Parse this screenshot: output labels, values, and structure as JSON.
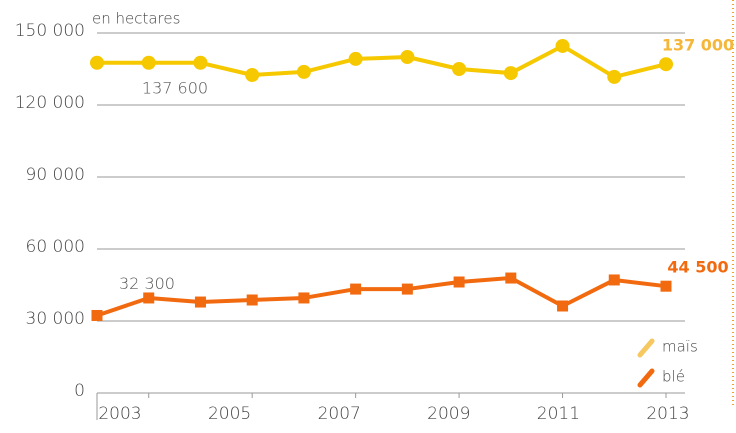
{
  "chart_data": {
    "type": "line",
    "y_label": "en hectares",
    "x": [
      2002,
      2003,
      2004,
      2005,
      2006,
      2007,
      2008,
      2009,
      2010,
      2011,
      2012,
      2013
    ],
    "xlim": [
      2002,
      2013
    ],
    "xticks": [
      2003,
      2005,
      2007,
      2009,
      2011,
      2013
    ],
    "ylim": [
      0,
      150000
    ],
    "yticks": [
      0,
      {
        "value": 30000,
        "label": "30 000"
      },
      {
        "value": 60000,
        "label": "60 000"
      },
      {
        "value": 90000,
        "label": "90 000"
      },
      {
        "value": 120000,
        "label": "120 000"
      },
      {
        "value": 150000,
        "label": "150 000"
      }
    ],
    "grid": true,
    "legend": "lower right",
    "series": [
      {
        "name": "maïs",
        "color": "#f5c800",
        "marker": "circle",
        "values": [
          137600,
          137600,
          137600,
          132500,
          133800,
          139200,
          140000,
          135000,
          133300,
          144600,
          131700,
          137000
        ],
        "value_labels": [
          "137 600",
          null,
          null,
          null,
          null,
          null,
          null,
          null,
          null,
          null,
          null,
          "137 000"
        ]
      },
      {
        "name": "blé",
        "color": "#f26a10",
        "marker": "square",
        "values": [
          32300,
          39600,
          37900,
          38750,
          39600,
          43300,
          43300,
          46250,
          47900,
          36250,
          47100,
          44500
        ],
        "value_labels": [
          "32 300",
          null,
          null,
          null,
          null,
          null,
          null,
          null,
          null,
          null,
          null,
          "44 500"
        ]
      }
    ]
  }
}
